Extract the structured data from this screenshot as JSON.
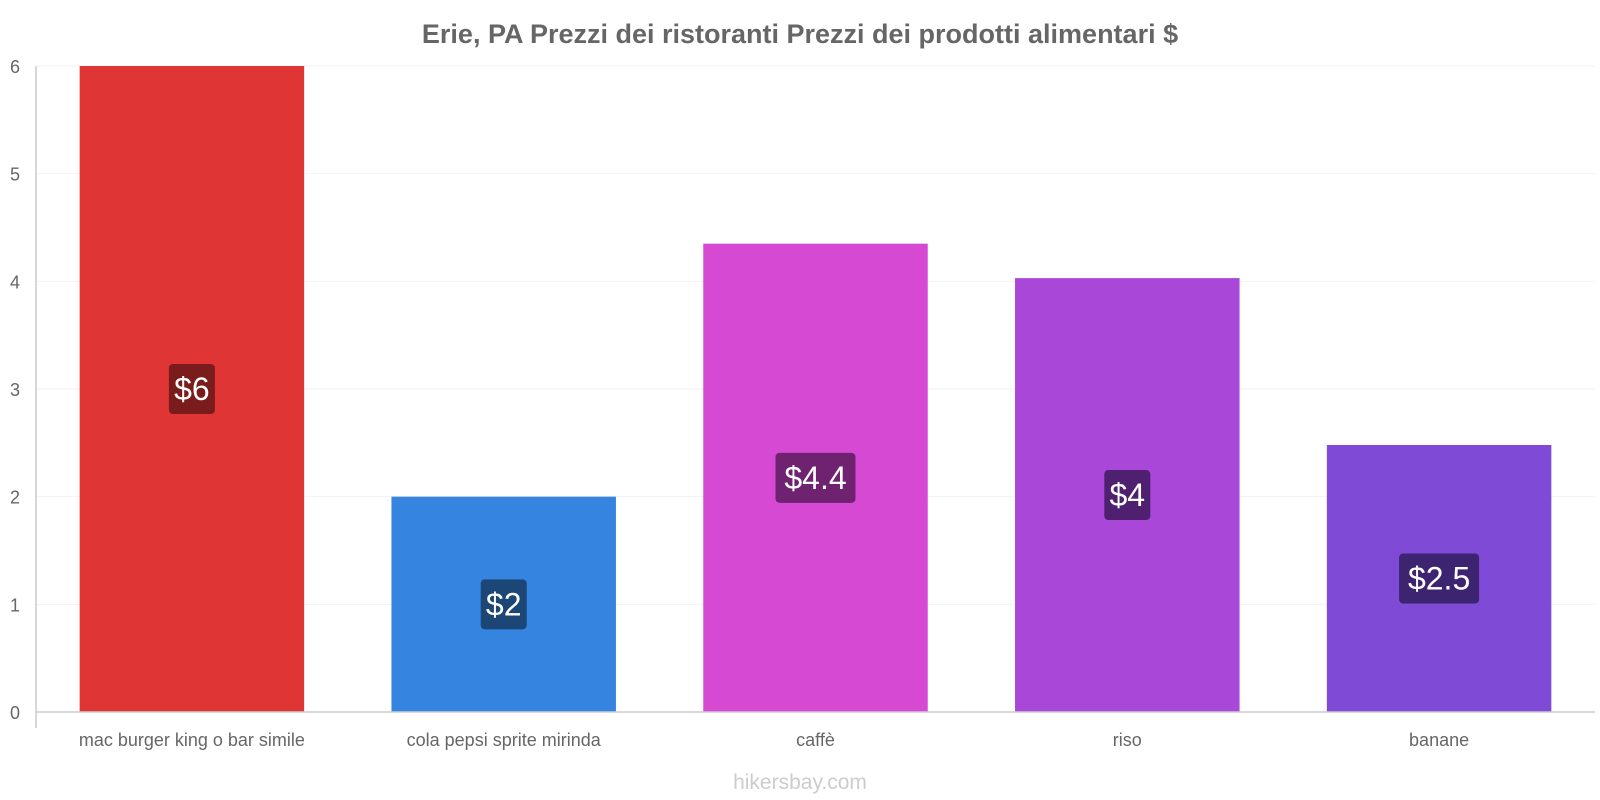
{
  "chart_data": {
    "type": "bar",
    "title": "Erie, PA Prezzi dei ristoranti Prezzi dei prodotti alimentari $",
    "xlabel": "",
    "ylabel": "",
    "ylim": [
      0,
      6
    ],
    "yticks": [
      "0",
      "1",
      "2",
      "3",
      "4",
      "5",
      "6"
    ],
    "categories": [
      "mac burger king o bar simile",
      "cola pepsi sprite mirinda",
      "caffè",
      "riso",
      "banane"
    ],
    "values": [
      6,
      2,
      4.35,
      4.03,
      2.48
    ],
    "labels": [
      "$6",
      "$2",
      "$4.4",
      "$4",
      "$2.5"
    ],
    "colors": [
      "#e03535",
      "#3584e0",
      "#d64ad3",
      "#a847d8",
      "#7f4ad6"
    ],
    "label_colors": [
      "#7a1c1c",
      "#1c4675",
      "#6e2270",
      "#4f2070",
      "#3d2470"
    ],
    "grid": true
  },
  "watermark": "hikersbay.com"
}
